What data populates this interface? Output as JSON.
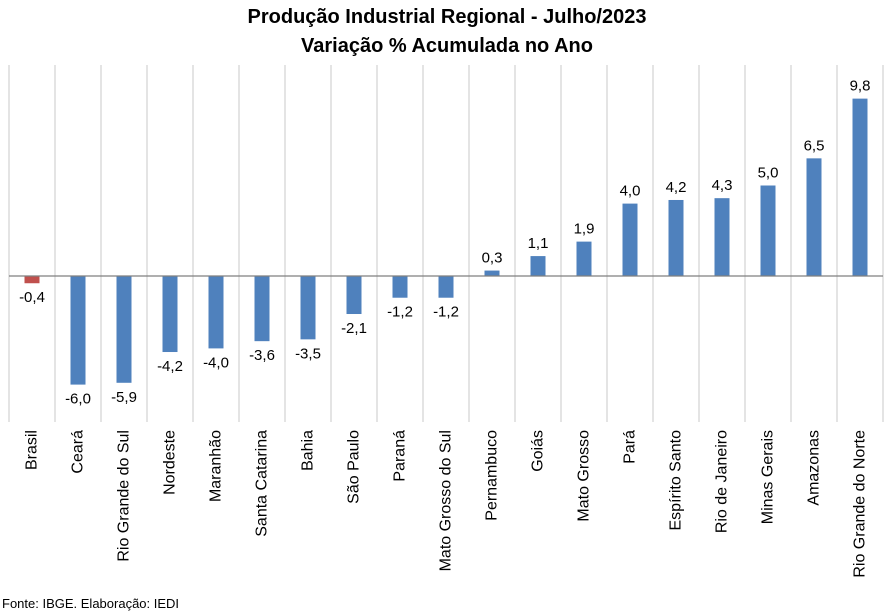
{
  "chart_data": {
    "type": "bar",
    "title": "Produção Industrial Regional - Julho/2023",
    "subtitle": "Variação % Acumulada no Ano",
    "categories": [
      "Brasil",
      "Ceará",
      "Rio Grande do Sul",
      "Nordeste",
      "Maranhão",
      "Santa Catarina",
      "Bahia",
      "São Paulo",
      "Paraná",
      "Mato Grosso do Sul",
      "Pernambuco",
      "Goiás",
      "Mato Grosso",
      "Pará",
      "Espírito Santo",
      "Rio de Janeiro",
      "Minas Gerais",
      "Amazonas",
      "Rio Grande do Norte"
    ],
    "values": [
      -0.4,
      -6.0,
      -5.9,
      -4.2,
      -4.0,
      -3.6,
      -3.5,
      -2.1,
      -1.2,
      -1.2,
      0.3,
      1.1,
      1.9,
      4.0,
      4.2,
      4.3,
      5.0,
      6.5,
      9.8
    ],
    "data_labels": [
      "-0,4",
      "-6,0",
      "-5,9",
      "-4,2",
      "-4,0",
      "-3,6",
      "-3,5",
      "-2,1",
      "-1,2",
      "-1,2",
      "0,3",
      "1,1",
      "1,9",
      "4,0",
      "4,2",
      "4,3",
      "5,0",
      "6,5",
      "9,8"
    ],
    "highlight_category": "Brasil",
    "colors": {
      "bar": "#4f81bd",
      "highlight": "#c0504d",
      "grid": "#c8c8c8",
      "axis": "#7f7f7f"
    },
    "gridlines": "vertical separators between categories",
    "xlabel": "",
    "ylabel": "",
    "ylim": [
      -8,
      12
    ]
  },
  "source": "Fonte: IBGE. Elaboração: IEDI"
}
